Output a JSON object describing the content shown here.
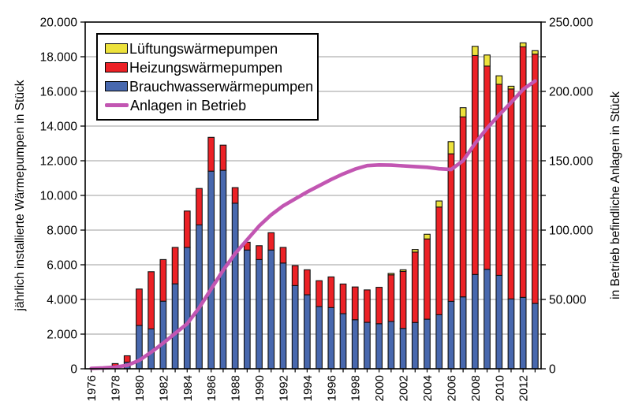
{
  "figure": {
    "background": "#FFFFFF",
    "plot_border_color": "#000000",
    "grid_color": "#9E9E9E",
    "tick_color": "#000000"
  },
  "legend": {
    "position": "top-left-inside",
    "items": [
      {
        "key": "lueftungswaermepumpen",
        "label": "Lüftungswärmepumpen",
        "swatch": "box",
        "color": "#EDE23C"
      },
      {
        "key": "heizungswaermepumpen",
        "label": "Heizungswärmepumpen",
        "swatch": "box",
        "color": "#EC2126"
      },
      {
        "key": "brauchwasserwaermepumpen",
        "label": "Brauchwasserwärmepumpen",
        "swatch": "box",
        "color": "#4868AE"
      },
      {
        "key": "anlagen-in-betrieb",
        "label": "Anlagen in Betrieb",
        "swatch": "line",
        "color": "#C256B2"
      }
    ]
  },
  "chart_data": {
    "type": "bar",
    "subtype": "stacked-bars-with-line-overlay",
    "title": "",
    "grid": true,
    "x": [
      1976,
      1977,
      1978,
      1979,
      1980,
      1981,
      1982,
      1983,
      1984,
      1985,
      1986,
      1987,
      1988,
      1989,
      1990,
      1991,
      1992,
      1993,
      1994,
      1995,
      1996,
      1997,
      1998,
      1999,
      2000,
      2001,
      2002,
      2003,
      2004,
      2005,
      2006,
      2007,
      2008,
      2009,
      2010,
      2011,
      2012,
      2013
    ],
    "x_axis": {
      "labeled_years": [
        "1976",
        "1978",
        "1980",
        "1982",
        "1984",
        "1986",
        "1988",
        "1990",
        "1992",
        "1994",
        "1996",
        "1998",
        "2000",
        "2002",
        "2004",
        "2006",
        "2008",
        "2010",
        "2012"
      ],
      "label_rotation_deg": -90
    },
    "left_axis": {
      "label": "jährlich installierte Wärmepumpen in Stück",
      "min": 0,
      "max": 20000,
      "tick_step": 2000,
      "tick_labels": [
        "0",
        "2.000",
        "4.000",
        "6.000",
        "8.000",
        "10.000",
        "12.000",
        "14.000",
        "16.000",
        "18.000",
        "20.000"
      ]
    },
    "right_axis": {
      "label": "in Betrieb befindliche Anlagen in Stück",
      "min": 0,
      "max": 250000,
      "tick_step": 25000,
      "label_step": 50000,
      "tick_labels": [
        "0",
        "50.000",
        "100.000",
        "150.000",
        "200.000",
        "250.000"
      ]
    },
    "series": [
      {
        "name": "Brauchwasserwärmepumpen",
        "type": "bar",
        "stack_order": 1,
        "axis": "left",
        "color": "#4868AE",
        "values": [
          0,
          0,
          100,
          380,
          2500,
          2300,
          3900,
          4900,
          7000,
          8300,
          11400,
          11450,
          9550,
          6850,
          6300,
          6850,
          6100,
          4800,
          4270,
          3590,
          3530,
          3180,
          2830,
          2680,
          2600,
          2730,
          2330,
          2670,
          2860,
          3120,
          3890,
          4150,
          5440,
          5740,
          5390,
          4030,
          4120,
          3770
        ]
      },
      {
        "name": "Heizungswärmepumpen",
        "type": "bar",
        "stack_order": 2,
        "axis": "left",
        "color": "#EC2126",
        "values": [
          0,
          0,
          200,
          370,
          2100,
          3300,
          2400,
          2100,
          2100,
          2100,
          1950,
          1450,
          900,
          450,
          800,
          1000,
          900,
          1150,
          1440,
          1490,
          1770,
          1710,
          1890,
          1870,
          2100,
          2690,
          3290,
          4060,
          4630,
          6210,
          8510,
          10380,
          12630,
          11720,
          11020,
          12110,
          14450,
          14380
        ]
      },
      {
        "name": "Lüftungswärmepumpen",
        "type": "bar",
        "stack_order": 3,
        "axis": "left",
        "color": "#EDE23C",
        "values": [
          0,
          0,
          0,
          0,
          0,
          0,
          0,
          0,
          0,
          0,
          0,
          0,
          0,
          0,
          0,
          0,
          0,
          0,
          0,
          0,
          0,
          0,
          0,
          0,
          0,
          80,
          90,
          150,
          270,
          350,
          700,
          530,
          530,
          640,
          490,
          160,
          230,
          200
        ]
      },
      {
        "name": "Anlagen in Betrieb",
        "type": "line",
        "axis": "right",
        "color": "#C256B2",
        "values": [
          300,
          600,
          1200,
          2500,
          6000,
          12000,
          18500,
          25500,
          32500,
          44000,
          57500,
          71000,
          83000,
          93000,
          103000,
          111000,
          117500,
          122500,
          127500,
          132000,
          136500,
          140500,
          144000,
          146500,
          147000,
          146800,
          146300,
          145800,
          145300,
          144200,
          143700,
          150000,
          162500,
          173500,
          183000,
          192000,
          201500,
          207500
        ]
      }
    ]
  }
}
